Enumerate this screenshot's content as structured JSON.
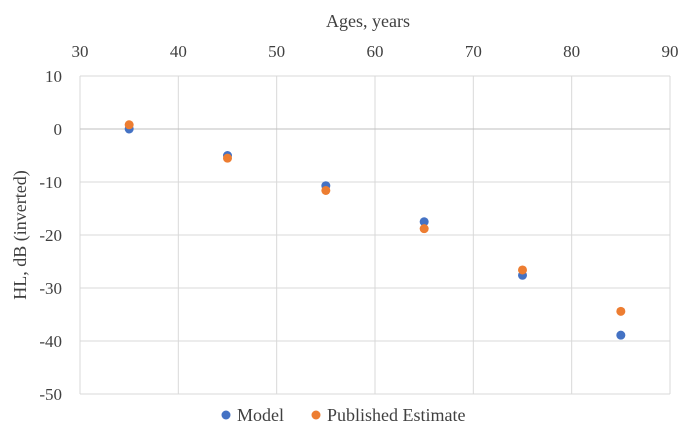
{
  "chart_data": {
    "type": "scatter",
    "xlabel": "Ages, years",
    "ylabel": "HL, dB (inverted)",
    "xlim": [
      30,
      90
    ],
    "ylim": [
      -50,
      10
    ],
    "x_ticks": [
      30,
      40,
      50,
      60,
      70,
      80,
      90
    ],
    "y_ticks": [
      10,
      0,
      -10,
      -20,
      -30,
      -40,
      -50
    ],
    "x_axis_position": "top",
    "grid": true,
    "legend_position": "bottom",
    "series": [
      {
        "name": "Model",
        "color": "#4472c4",
        "points": [
          {
            "x": 35,
            "y": 0
          },
          {
            "x": 45,
            "y": -5
          },
          {
            "x": 55,
            "y": -10.7
          },
          {
            "x": 65,
            "y": -17.5
          },
          {
            "x": 75,
            "y": -27.6
          },
          {
            "x": 85,
            "y": -38.9
          }
        ]
      },
      {
        "name": "Published Estimate",
        "color": "#ed7d31",
        "points": [
          {
            "x": 35,
            "y": 0.8
          },
          {
            "x": 45,
            "y": -5.5
          },
          {
            "x": 55,
            "y": -11.6
          },
          {
            "x": 65,
            "y": -18.8
          },
          {
            "x": 75,
            "y": -26.6
          },
          {
            "x": 85,
            "y": -34.4
          }
        ]
      }
    ]
  }
}
